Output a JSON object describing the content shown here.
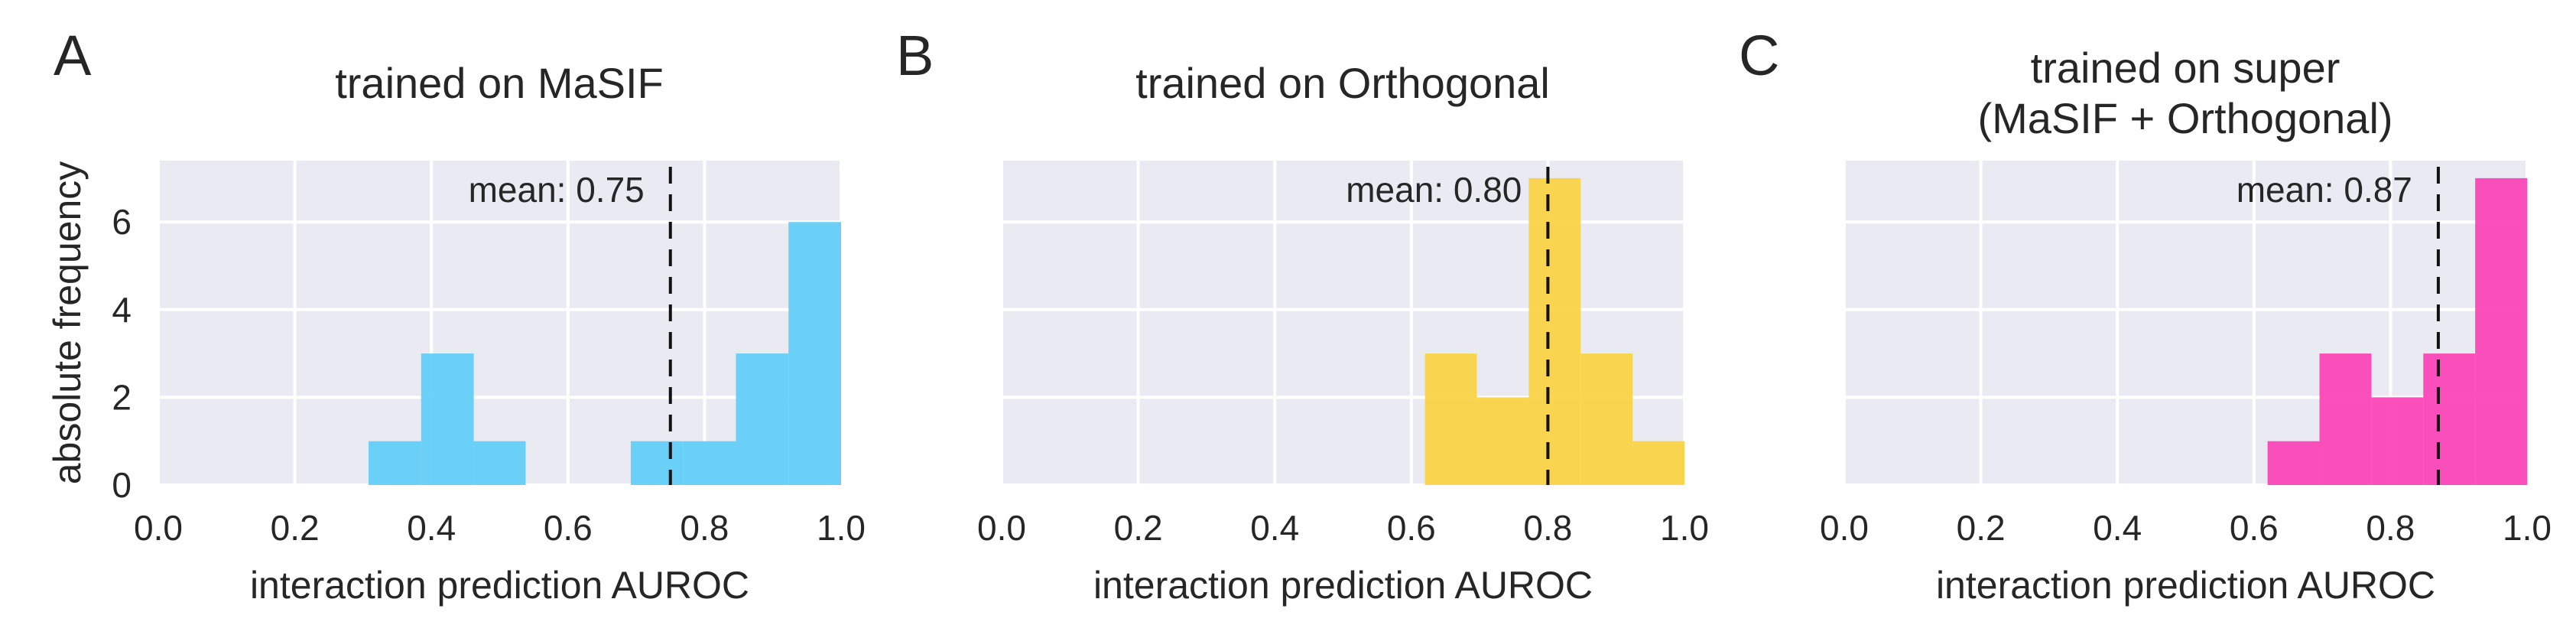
{
  "figure": {
    "shared_ylabel": "absolute frequency",
    "y_ticks": [
      0,
      2,
      4,
      6
    ],
    "x_ticks": [
      0.0,
      0.2,
      0.4,
      0.6,
      0.8,
      1.0
    ],
    "x_tick_labels": [
      "0.0",
      "0.2",
      "0.4",
      "0.6",
      "0.8",
      "1.0"
    ],
    "background_color": "#eaeaf2",
    "grid": true
  },
  "chart_data": [
    {
      "type": "bar",
      "panel_letter": "A",
      "title_lines": [
        "trained on MaSIF"
      ],
      "xlabel": "interaction prediction AUROC",
      "ylabel": "absolute frequency",
      "xlim": [
        0.0,
        1.0
      ],
      "ylim": [
        0,
        7.4
      ],
      "color": "#5fcdf7",
      "bins": [
        {
          "x0": 0.308,
          "x1": 0.385,
          "count": 1
        },
        {
          "x0": 0.385,
          "x1": 0.462,
          "count": 3
        },
        {
          "x0": 0.462,
          "x1": 0.538,
          "count": 1
        },
        {
          "x0": 0.692,
          "x1": 0.769,
          "count": 1
        },
        {
          "x0": 0.769,
          "x1": 0.846,
          "count": 1
        },
        {
          "x0": 0.846,
          "x1": 0.923,
          "count": 3
        },
        {
          "x0": 0.923,
          "x1": 1.0,
          "count": 6
        }
      ],
      "mean": 0.75,
      "mean_label": "mean: 0.75"
    },
    {
      "type": "bar",
      "panel_letter": "B",
      "title_lines": [
        "trained on Orthogonal"
      ],
      "xlabel": "interaction prediction AUROC",
      "xlim": [
        0.0,
        1.0
      ],
      "ylim": [
        0,
        7.4
      ],
      "color": "#fad341",
      "bins": [
        {
          "x0": 0.62,
          "x1": 0.696,
          "count": 3
        },
        {
          "x0": 0.696,
          "x1": 0.772,
          "count": 2
        },
        {
          "x0": 0.772,
          "x1": 0.848,
          "count": 7
        },
        {
          "x0": 0.848,
          "x1": 0.924,
          "count": 3
        },
        {
          "x0": 0.924,
          "x1": 1.0,
          "count": 1
        }
      ],
      "mean": 0.8,
      "mean_label": "mean: 0.80"
    },
    {
      "type": "bar",
      "panel_letter": "C",
      "title_lines": [
        "trained on super",
        "(MaSIF + Orthogonal)"
      ],
      "xlabel": "interaction prediction AUROC",
      "xlim": [
        0.0,
        1.0
      ],
      "ylim": [
        0,
        7.4
      ],
      "color": "#fb41b6",
      "bins": [
        {
          "x0": 0.62,
          "x1": 0.696,
          "count": 1
        },
        {
          "x0": 0.696,
          "x1": 0.772,
          "count": 3
        },
        {
          "x0": 0.772,
          "x1": 0.848,
          "count": 2
        },
        {
          "x0": 0.848,
          "x1": 0.924,
          "count": 3
        },
        {
          "x0": 0.924,
          "x1": 1.0,
          "count": 7
        }
      ],
      "mean": 0.87,
      "mean_label": "mean: 0.87"
    }
  ]
}
